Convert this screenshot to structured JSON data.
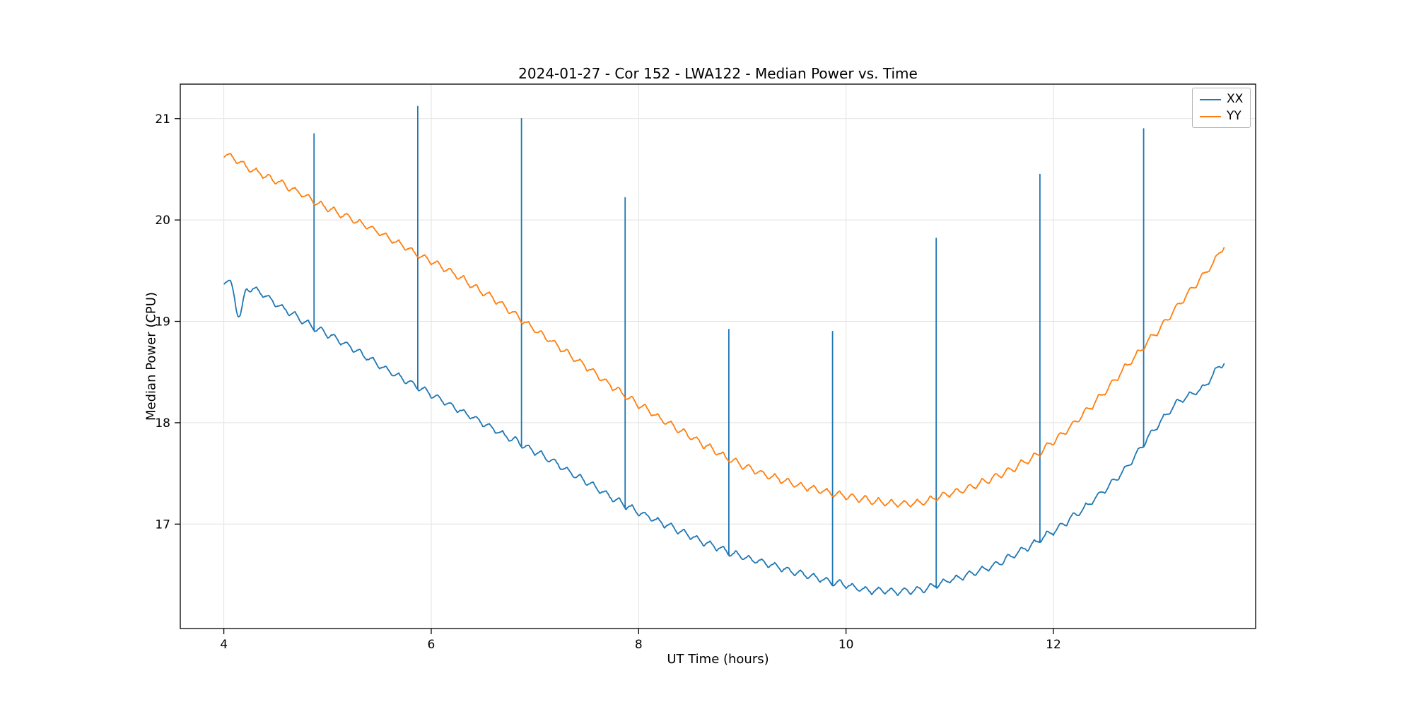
{
  "chart_data": {
    "type": "line",
    "title": "2024-01-27 - Cor 152 - LWA122 - Median Power vs. Time",
    "xlabel": "UT Time (hours)",
    "ylabel": "Median Power (CPU)",
    "xlim": [
      3.58,
      13.95
    ],
    "ylim": [
      15.97,
      21.34
    ],
    "xticks": [
      4,
      6,
      8,
      10,
      12
    ],
    "yticks": [
      17,
      18,
      19,
      20,
      21
    ],
    "grid": true,
    "grid_color": "#e2e2e2",
    "legend_position": "upper right",
    "ripple": {
      "amplitude": 0.035,
      "period": 0.125
    },
    "series": [
      {
        "name": "XX",
        "color": "#1f77b4",
        "anchors": [
          [
            4.0,
            19.4
          ],
          [
            4.08,
            19.33
          ],
          [
            4.15,
            19.05
          ],
          [
            4.22,
            19.32
          ],
          [
            4.5,
            19.18
          ],
          [
            4.8,
            18.98
          ],
          [
            5.0,
            18.87
          ],
          [
            5.3,
            18.7
          ],
          [
            5.6,
            18.5
          ],
          [
            6.0,
            18.28
          ],
          [
            6.4,
            18.05
          ],
          [
            6.8,
            17.83
          ],
          [
            7.2,
            17.6
          ],
          [
            7.6,
            17.35
          ],
          [
            8.0,
            17.12
          ],
          [
            8.4,
            16.93
          ],
          [
            8.8,
            16.75
          ],
          [
            9.2,
            16.62
          ],
          [
            9.6,
            16.5
          ],
          [
            10.0,
            16.4
          ],
          [
            10.3,
            16.34
          ],
          [
            10.7,
            16.35
          ],
          [
            11.0,
            16.45
          ],
          [
            11.4,
            16.58
          ],
          [
            11.8,
            16.8
          ],
          [
            12.1,
            17.0
          ],
          [
            12.4,
            17.25
          ],
          [
            12.7,
            17.55
          ],
          [
            12.95,
            17.9
          ],
          [
            13.2,
            18.2
          ],
          [
            13.45,
            18.35
          ],
          [
            13.65,
            18.6
          ]
        ],
        "spikes": [
          [
            4.87,
            20.85
          ],
          [
            5.87,
            21.12
          ],
          [
            6.87,
            21.0
          ],
          [
            7.87,
            20.22
          ],
          [
            8.87,
            18.92
          ],
          [
            9.87,
            18.9
          ],
          [
            10.87,
            19.82
          ],
          [
            11.87,
            20.45
          ],
          [
            12.87,
            20.9
          ]
        ]
      },
      {
        "name": "YY",
        "color": "#ff7f0e",
        "anchors": [
          [
            4.0,
            20.65
          ],
          [
            4.3,
            20.48
          ],
          [
            4.6,
            20.33
          ],
          [
            5.0,
            20.12
          ],
          [
            5.4,
            19.93
          ],
          [
            5.8,
            19.7
          ],
          [
            6.2,
            19.48
          ],
          [
            6.6,
            19.22
          ],
          [
            7.0,
            18.92
          ],
          [
            7.4,
            18.62
          ],
          [
            7.8,
            18.32
          ],
          [
            8.2,
            18.05
          ],
          [
            8.6,
            17.8
          ],
          [
            9.0,
            17.58
          ],
          [
            9.4,
            17.43
          ],
          [
            9.8,
            17.32
          ],
          [
            10.2,
            17.24
          ],
          [
            10.6,
            17.2
          ],
          [
            11.0,
            17.3
          ],
          [
            11.4,
            17.45
          ],
          [
            11.8,
            17.65
          ],
          [
            12.1,
            17.9
          ],
          [
            12.4,
            18.2
          ],
          [
            12.7,
            18.55
          ],
          [
            13.0,
            18.9
          ],
          [
            13.2,
            19.15
          ],
          [
            13.4,
            19.4
          ],
          [
            13.55,
            19.58
          ],
          [
            13.65,
            19.75
          ]
        ],
        "spikes": []
      }
    ]
  }
}
